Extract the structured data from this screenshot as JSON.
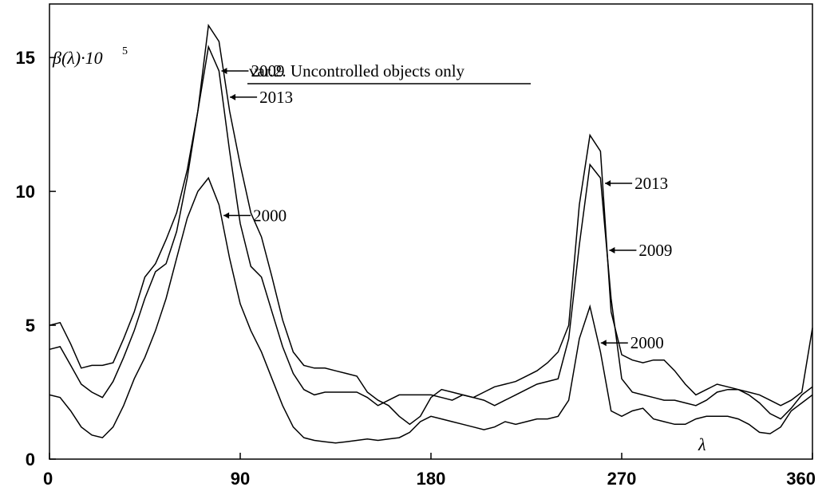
{
  "chart_data": {
    "type": "line",
    "title": "var.2. Uncontrolled objects only",
    "y_label": "β(λ)·10",
    "y_label_exponent": "5",
    "x_label": "λ",
    "xlim": [
      0,
      360
    ],
    "xticks": [
      0,
      90,
      180,
      270,
      360
    ],
    "ylim": [
      0,
      17
    ],
    "yticks": [
      0,
      5,
      10,
      15
    ],
    "x": [
      0,
      5,
      10,
      15,
      20,
      25,
      30,
      35,
      40,
      45,
      50,
      55,
      60,
      65,
      70,
      75,
      80,
      85,
      90,
      95,
      100,
      105,
      110,
      115,
      120,
      125,
      130,
      135,
      140,
      145,
      150,
      155,
      160,
      165,
      170,
      175,
      180,
      185,
      190,
      195,
      200,
      205,
      210,
      215,
      220,
      225,
      230,
      235,
      240,
      245,
      250,
      255,
      260,
      265,
      270,
      275,
      280,
      285,
      290,
      295,
      300,
      305,
      310,
      315,
      320,
      325,
      330,
      335,
      340,
      345,
      350,
      355,
      360
    ],
    "series": [
      {
        "name": "2013",
        "color": "#000000",
        "values": [
          5.0,
          5.1,
          4.3,
          3.4,
          3.5,
          3.5,
          3.6,
          4.5,
          5.5,
          6.8,
          7.3,
          8.2,
          9.2,
          10.8,
          13.0,
          16.2,
          15.6,
          13.0,
          11.0,
          9.2,
          8.3,
          6.8,
          5.2,
          4.0,
          3.5,
          3.4,
          3.4,
          3.3,
          3.2,
          3.1,
          2.5,
          2.2,
          2.0,
          1.6,
          1.3,
          1.6,
          2.3,
          2.6,
          2.5,
          2.4,
          2.3,
          2.5,
          2.7,
          2.8,
          2.9,
          3.1,
          3.3,
          3.6,
          4.0,
          5.0,
          9.5,
          12.1,
          11.5,
          5.5,
          3.9,
          3.7,
          3.6,
          3.7,
          3.7,
          3.3,
          2.8,
          2.4,
          2.6,
          2.8,
          2.7,
          2.6,
          2.5,
          2.4,
          2.2,
          2.0,
          2.2,
          2.5,
          4.9
        ]
      },
      {
        "name": "2009",
        "color": "#000000",
        "values": [
          4.1,
          4.2,
          3.5,
          2.8,
          2.5,
          2.3,
          2.9,
          3.8,
          4.8,
          6.0,
          7.0,
          7.3,
          8.5,
          10.5,
          13.0,
          15.4,
          14.5,
          11.5,
          8.8,
          7.2,
          6.8,
          5.5,
          4.2,
          3.2,
          2.6,
          2.4,
          2.5,
          2.5,
          2.5,
          2.5,
          2.3,
          2.0,
          2.2,
          2.4,
          2.4,
          2.4,
          2.4,
          2.3,
          2.2,
          2.4,
          2.3,
          2.2,
          2.0,
          2.2,
          2.4,
          2.6,
          2.8,
          2.9,
          3.0,
          4.5,
          8.0,
          11.0,
          10.5,
          6.0,
          3.0,
          2.5,
          2.4,
          2.3,
          2.2,
          2.2,
          2.1,
          2.0,
          2.2,
          2.5,
          2.6,
          2.6,
          2.4,
          2.1,
          1.7,
          1.5,
          1.9,
          2.4,
          2.7
        ]
      },
      {
        "name": "2000",
        "color": "#000000",
        "values": [
          2.4,
          2.3,
          1.8,
          1.2,
          0.9,
          0.8,
          1.2,
          2.0,
          3.0,
          3.8,
          4.8,
          6.0,
          7.5,
          9.0,
          10.0,
          10.5,
          9.5,
          7.5,
          5.8,
          4.8,
          4.0,
          3.0,
          2.0,
          1.2,
          0.8,
          0.7,
          0.65,
          0.6,
          0.65,
          0.7,
          0.75,
          0.7,
          0.75,
          0.8,
          1.0,
          1.4,
          1.6,
          1.5,
          1.4,
          1.3,
          1.2,
          1.1,
          1.2,
          1.4,
          1.3,
          1.4,
          1.5,
          1.5,
          1.6,
          2.2,
          4.5,
          5.7,
          4.0,
          1.8,
          1.6,
          1.8,
          1.9,
          1.5,
          1.4,
          1.3,
          1.3,
          1.5,
          1.6,
          1.6,
          1.6,
          1.5,
          1.3,
          1.0,
          0.95,
          1.2,
          1.8,
          2.1,
          2.4
        ]
      }
    ]
  }
}
